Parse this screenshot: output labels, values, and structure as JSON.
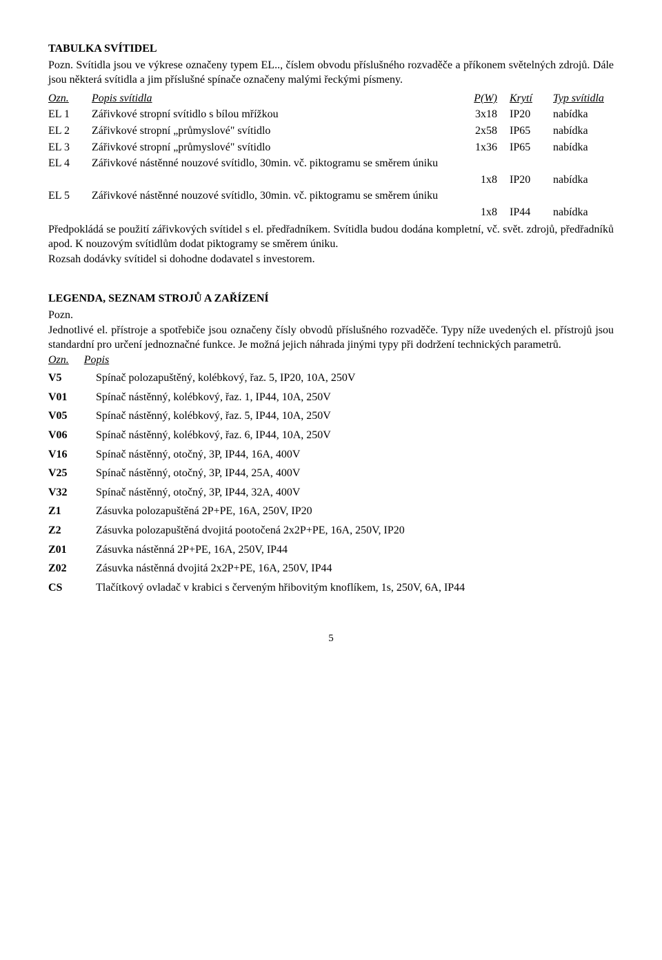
{
  "svitidla": {
    "heading": "TABULKA SVÍTIDEL",
    "note": "Pozn. Svítidla jsou ve výkrese označeny typem EL.., číslem obvodu příslušného rozvaděče a příkonem světelných zdrojů. Dále jsou některá svítidla a jim příslušné spínače označeny malými řeckými písmeny.",
    "header": {
      "ozn": "Ozn.",
      "popis": "Popis svítidla",
      "pw": "P(W)",
      "kryti": "Krytí",
      "typ": "Typ svítidla"
    },
    "rows": [
      {
        "ozn": "EL 1",
        "popis": "Zářivkové stropní svítidlo s bílou mřížkou",
        "pw": "3x18",
        "kryti": "IP20",
        "typ": "nabídka"
      },
      {
        "ozn": "EL 2",
        "popis": "Zářivkové stropní „průmyslové\" svítidlo",
        "pw": "2x58",
        "kryti": "IP65",
        "typ": "nabídka"
      },
      {
        "ozn": "EL 3",
        "popis": "Zářivkové stropní „průmyslové\" svítidlo",
        "pw": "1x36",
        "kryti": "IP65",
        "typ": "nabídka"
      },
      {
        "ozn": "EL 4",
        "popis": "Zářivkové nástěnné nouzové svítidlo, 30min. vč. piktogramu se směrem úniku",
        "pw": "1x8",
        "kryti": "IP20",
        "typ": "nabídka"
      },
      {
        "ozn": "EL 5",
        "popis": "Zářivkové nástěnné nouzové svítidlo, 30min. vč. piktogramu se směrem úniku",
        "pw": "1x8",
        "kryti": "IP44",
        "typ": "nabídka"
      }
    ],
    "after": "Předpokládá se použití zářivkových svítidel s el. předřadníkem. Svítidla budou dodána kompletní, vč. svět. zdrojů, předřadníků apod. K nouzovým svítidlům dodat piktogramy se směrem úniku.",
    "after2": "Rozsah dodávky svítidel si dohodne dodavatel s investorem."
  },
  "legend": {
    "heading": "LEGENDA, SEZNAM STROJŮ A ZAŘÍZENÍ",
    "pozn_label": "Pozn.",
    "note": "Jednotlivé el. přístroje a spotřebiče  jsou označeny čísly  obvodů příslušného rozvaděče.  Typy níže uvedených  el.  přístrojů  jsou  standardní  pro  určení  jednoznačné  funkce.  Je  možná  jejich náhrada jinými typy při dodržení technických parametrů.",
    "header": {
      "ozn": "Ozn.",
      "popis": "Popis"
    },
    "rows": [
      {
        "code": "V5",
        "desc": "Spínač polozapuštěný, kolébkový, řaz. 5, IP20, 10A, 250V"
      },
      {
        "code": "V01",
        "desc": "Spínač nástěnný, kolébkový, řaz. 1, IP44, 10A, 250V"
      },
      {
        "code": "V05",
        "desc": "Spínač nástěnný, kolébkový, řaz. 5, IP44, 10A, 250V"
      },
      {
        "code": "V06",
        "desc": "Spínač nástěnný, kolébkový, řaz. 6, IP44, 10A, 250V"
      },
      {
        "code": "V16",
        "desc": "Spínač nástěnný, otočný, 3P, IP44, 16A, 400V"
      },
      {
        "code": "V25",
        "desc": "Spínač nástěnný, otočný, 3P, IP44, 25A, 400V"
      },
      {
        "code": "V32",
        "desc": "Spínač nástěnný, otočný, 3P, IP44, 32A, 400V"
      },
      {
        "code": "Z1",
        "desc": "Zásuvka polozapuštěná 2P+PE, 16A, 250V, IP20"
      },
      {
        "code": "Z2",
        "desc": "Zásuvka polozapuštěná dvojitá pootočená 2x2P+PE, 16A, 250V, IP20"
      },
      {
        "code": "Z01",
        "desc": "Zásuvka nástěnná 2P+PE, 16A, 250V, IP44"
      },
      {
        "code": "Z02",
        "desc": "Zásuvka nástěnná dvojitá 2x2P+PE, 16A, 250V, IP44"
      },
      {
        "code": "CS",
        "desc": "Tlačítkový ovladač v krabici s červeným hřibovitým knoflíkem, 1s, 250V, 6A, IP44"
      }
    ]
  },
  "footer": "5"
}
